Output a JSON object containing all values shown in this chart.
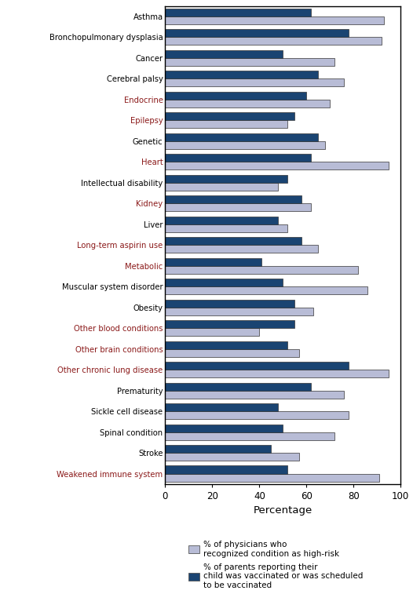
{
  "categories": [
    "Asthma",
    "Bronchopulmonary dysplasia",
    "Cancer",
    "Cerebral palsy",
    "Endocrine",
    "Epilepsy",
    "Genetic",
    "Heart",
    "Intellectual disability",
    "Kidney",
    "Liver",
    "Long-term aspirin use",
    "Metabolic",
    "Muscular system disorder",
    "Obesity",
    "Other blood conditions",
    "Other brain conditions",
    "Other chronic lung disease",
    "Prematurity",
    "Sickle cell disease",
    "Spinal condition",
    "Stroke",
    "Weakened immune system"
  ],
  "physicians_pct": [
    93,
    92,
    72,
    76,
    70,
    52,
    68,
    95,
    48,
    62,
    52,
    65,
    82,
    86,
    63,
    40,
    57,
    95,
    76,
    78,
    72,
    57,
    91
  ],
  "parents_pct": [
    62,
    78,
    50,
    65,
    60,
    55,
    65,
    62,
    52,
    58,
    48,
    58,
    41,
    50,
    55,
    55,
    52,
    78,
    62,
    48,
    50,
    45,
    52
  ],
  "label_colors": {
    "Asthma": "#000000",
    "Bronchopulmonary dysplasia": "#000000",
    "Cancer": "#000000",
    "Cerebral palsy": "#000000",
    "Endocrine": "#8B1A1A",
    "Epilepsy": "#8B1A1A",
    "Genetic": "#000000",
    "Heart": "#8B1A1A",
    "Intellectual disability": "#000000",
    "Kidney": "#8B1A1A",
    "Liver": "#000000",
    "Long-term aspirin use": "#8B1A1A",
    "Metabolic": "#8B1A1A",
    "Muscular system disorder": "#000000",
    "Obesity": "#000000",
    "Other blood conditions": "#8B1A1A",
    "Other brain conditions": "#8B1A1A",
    "Other chronic lung disease": "#8B1A1A",
    "Prematurity": "#000000",
    "Sickle cell disease": "#000000",
    "Spinal condition": "#000000",
    "Stroke": "#000000",
    "Weakened immune system": "#8B1A1A"
  },
  "physician_color": "#b8bcd6",
  "parent_color": "#1a4472",
  "xlabel": "Percentage",
  "xlim": [
    0,
    100
  ],
  "xticks": [
    0,
    20,
    40,
    60,
    80,
    100
  ],
  "legend_physician": "% of physicians who\nrecognized condition as high-risk",
  "legend_parent": "% of parents reporting their\nchild was vaccinated or was scheduled\nto be vaccinated",
  "bar_height": 0.38,
  "background_color": "#ffffff"
}
